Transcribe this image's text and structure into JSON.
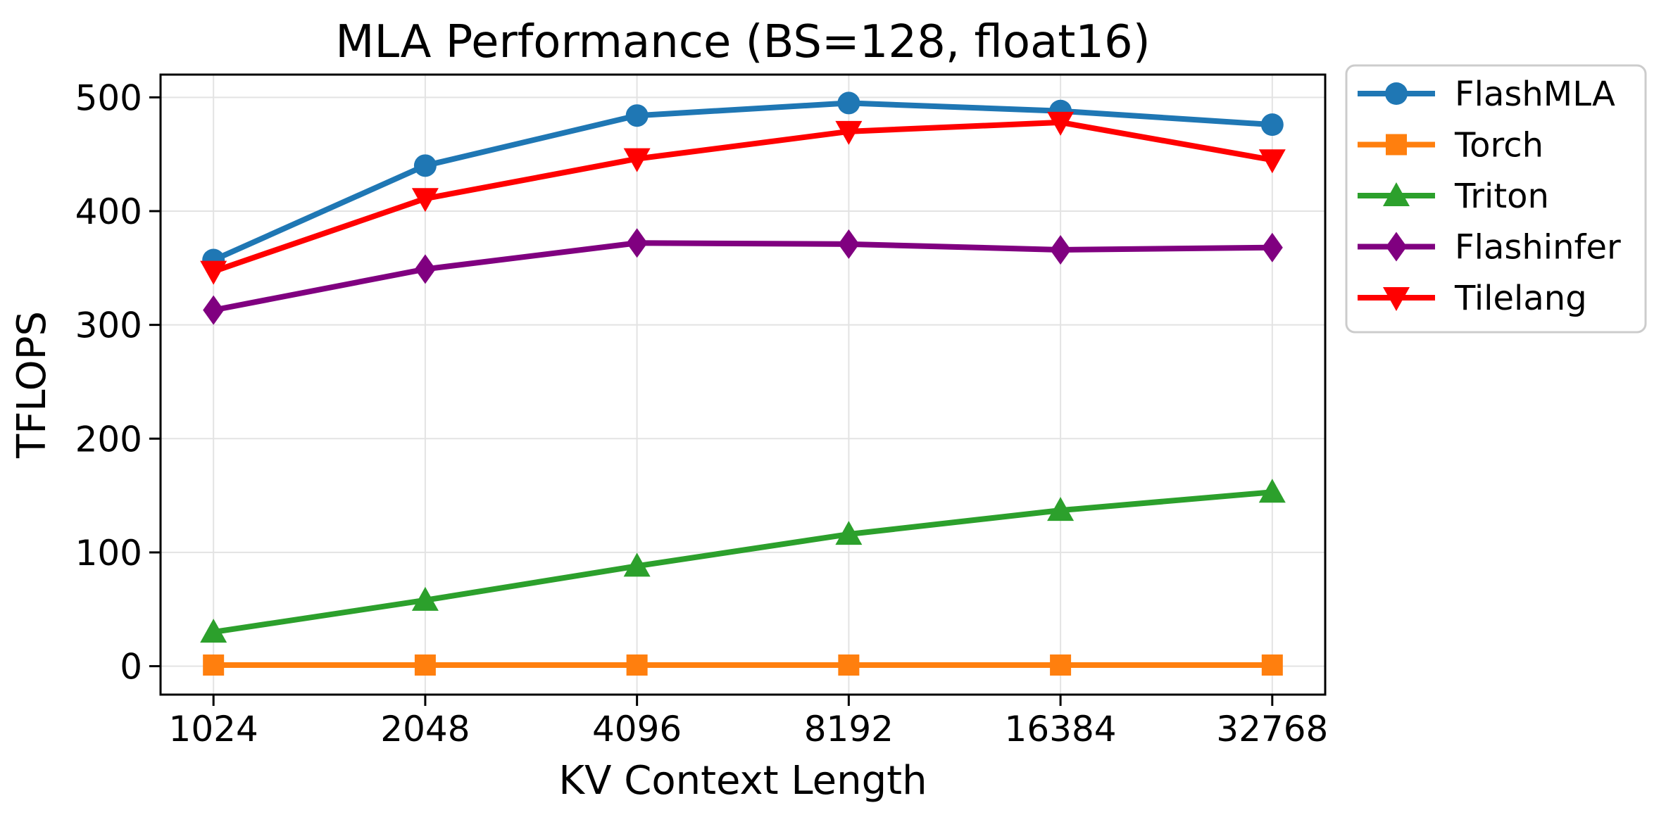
{
  "figure": {
    "background": "#ffffff"
  },
  "chart_data": {
    "type": "line",
    "title": "MLA Performance (BS=128, float16)",
    "xlabel": "KV Context Length",
    "ylabel": "TFLOPS",
    "categories": [
      "1024",
      "2048",
      "4096",
      "8192",
      "16384",
      "32768"
    ],
    "x_scale": "categorical-evenly-spaced",
    "yticks": [
      0,
      100,
      200,
      300,
      400,
      500
    ],
    "ylim": [
      -25,
      520
    ],
    "grid": true,
    "legend_position": "outside-upper-right",
    "series": [
      {
        "name": "FlashMLA",
        "color": "#1f77b4",
        "marker": "circle",
        "values": [
          357,
          440,
          484,
          495,
          488,
          476
        ]
      },
      {
        "name": "Torch",
        "color": "#ff7f0e",
        "marker": "square",
        "values": [
          1,
          1,
          1,
          1,
          1,
          1
        ]
      },
      {
        "name": "Triton",
        "color": "#2ca02c",
        "marker": "triangle-up",
        "values": [
          30,
          58,
          88,
          116,
          137,
          153
        ]
      },
      {
        "name": "Flashinfer",
        "color": "#800080",
        "marker": "diamond",
        "values": [
          313,
          349,
          372,
          371,
          366,
          368
        ]
      },
      {
        "name": "Tilelang",
        "color": "#ff0000",
        "marker": "triangle-down",
        "values": [
          347,
          411,
          446,
          470,
          478,
          445
        ]
      }
    ],
    "colors": {
      "grid": "#e3e3e3",
      "axis": "#000000",
      "tick_label": "#000000",
      "legend_border": "#cccccc",
      "legend_fill": "#ffffff"
    }
  }
}
